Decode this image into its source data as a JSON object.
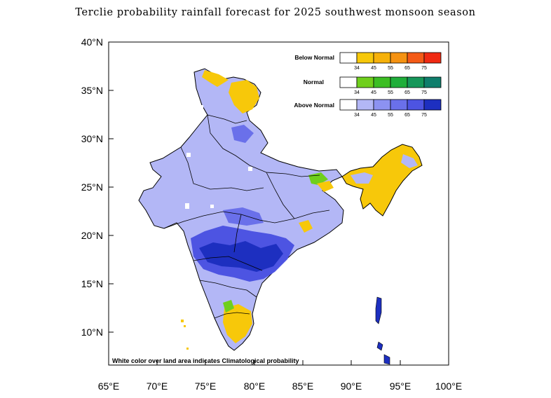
{
  "title": "Terclie probability rainfall forecast for 2025 southwest monsoon  season",
  "axes": {
    "lat_ticks": [
      "40°N",
      "35°N",
      "30°N",
      "25°N",
      "20°N",
      "15°N",
      "10°N"
    ],
    "lon_ticks": [
      "65°E",
      "70°E",
      "75°E",
      "80°E",
      "85°E",
      "90°E",
      "95°E",
      "100°E"
    ],
    "lat_values": [
      40,
      35,
      30,
      25,
      20,
      15,
      10
    ],
    "lon_values": [
      65,
      70,
      75,
      80,
      85,
      90,
      95,
      100
    ],
    "lat_range": [
      6.5,
      40
    ],
    "lon_range": [
      65,
      100
    ]
  },
  "legend": {
    "tick_labels": [
      "34",
      "45",
      "55",
      "65",
      "75"
    ],
    "bars": [
      {
        "label": "Below Normal",
        "colors": [
          "#ffffff",
          "#f7c80a",
          "#f6b10a",
          "#f59212",
          "#f45a17",
          "#f02a12"
        ]
      },
      {
        "label": "Normal",
        "colors": [
          "#ffffff",
          "#6fcf1c",
          "#3cbe23",
          "#1fae3a",
          "#16975a",
          "#0f7e6c"
        ]
      },
      {
        "label": "Above Normal",
        "colors": [
          "#ffffff",
          "#b3b7f6",
          "#8c92f1",
          "#6a70ea",
          "#4d54e2",
          "#1d2fc0"
        ]
      }
    ]
  },
  "footnote": "White color over land area indicates Climatological probability",
  "colors": {
    "above_light": "#b3b7f6",
    "above_mid": "#6a70ea",
    "above_dark": "#1d2fc0",
    "below_light": "#f7c80a",
    "normal_light": "#6fcf1c",
    "border": "#000000"
  }
}
